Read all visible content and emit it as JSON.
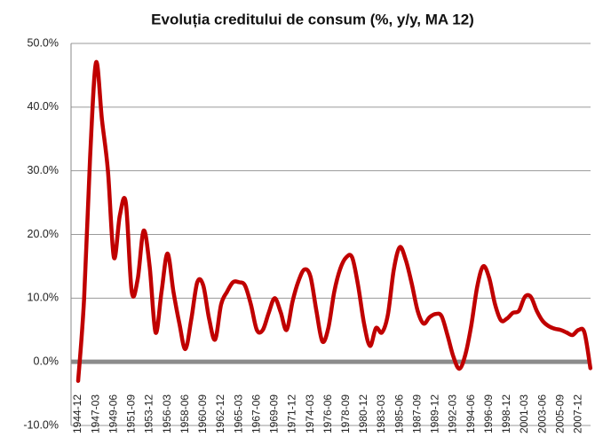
{
  "chart_data": {
    "type": "line",
    "title": "Evoluția creditului de consum (%, y/y, MA 12)",
    "categories": [
      "1944-12",
      null,
      null,
      "1947-03",
      null,
      null,
      "1949-06",
      null,
      null,
      "1951-09",
      null,
      null,
      "1953-12",
      null,
      null,
      "1956-03",
      null,
      null,
      "1958-06",
      null,
      null,
      "1960-09",
      null,
      null,
      "1962-12",
      null,
      null,
      "1965-03",
      null,
      null,
      "1967-06",
      null,
      null,
      "1969-09",
      null,
      null,
      "1971-12",
      null,
      null,
      "1974-03",
      null,
      null,
      "1976-06",
      null,
      null,
      "1978-09",
      null,
      null,
      "1980-12",
      null,
      null,
      "1983-03",
      null,
      null,
      "1985-06",
      null,
      null,
      "1987-09",
      null,
      null,
      "1989-12",
      null,
      null,
      "1992-03",
      null,
      null,
      "1994-06",
      null,
      null,
      "1996-09",
      null,
      null,
      "1998-12",
      null,
      null,
      "2001-03",
      null,
      null,
      "2003-06",
      null,
      null,
      "2005-09",
      null,
      null,
      "2007-12",
      null,
      null
    ],
    "values": [
      -3,
      9.9,
      32,
      47,
      38,
      30,
      16.4,
      23,
      25,
      11,
      13,
      20.6,
      15,
      4.6,
      11,
      17,
      11,
      6,
      2,
      6.7,
      12.5,
      12,
      6.7,
      3.5,
      9,
      11,
      12.5,
      12.5,
      12,
      9,
      5,
      5,
      7.7,
      10,
      7.8,
      5,
      9.5,
      12.7,
      14.5,
      13.4,
      8,
      3.2,
      5.3,
      11,
      14.6,
      16.4,
      16.4,
      12,
      6,
      2.5,
      5.3,
      4.6,
      7.4,
      14.5,
      18,
      16,
      12.3,
      8,
      6,
      7,
      7.5,
      7.2,
      4.2,
      0.8,
      -1.1,
      1.1,
      5.7,
      11.8,
      15,
      13.2,
      9,
      6.5,
      6.8,
      7.7,
      8,
      10.2,
      10.2,
      8,
      6.4,
      5.6,
      5.2,
      5,
      4.6,
      4.2,
      5,
      4.6,
      -1
    ],
    "color": "#c00000",
    "ylim": [
      -10,
      50
    ],
    "yticks": [
      {
        "value": -10,
        "label": "-10.0%"
      },
      {
        "value": 0,
        "label": "0.0%"
      },
      {
        "value": 10,
        "label": "10.0%"
      },
      {
        "value": 20,
        "label": "20.0%"
      },
      {
        "value": 30,
        "label": "30.0%"
      },
      {
        "value": 40,
        "label": "40.0%"
      },
      {
        "value": 50,
        "label": "50.0%"
      }
    ],
    "grid": true
  }
}
